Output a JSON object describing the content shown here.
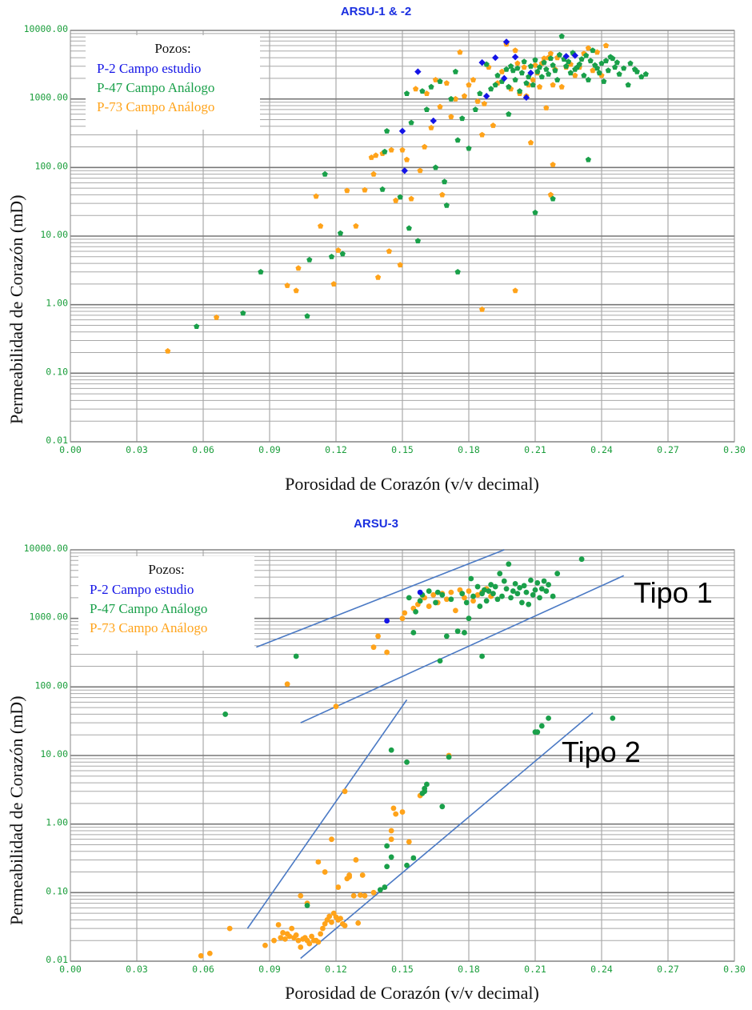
{
  "colors": {
    "P-2": "#1414e6",
    "P-47": "#1aa04a",
    "P-73": "#ffa31a",
    "title": "#1a2fe0",
    "tick": "#1b9e3c",
    "trend": "#4a79c4"
  },
  "chart_data": [
    {
      "type": "scatter",
      "title": "ARSU-1 & -2",
      "xlabel": "Porosidad de Corazón (v/v decimal)",
      "ylabel": "Permeabilidad de Corazón (mD)",
      "xlim": [
        0,
        0.3
      ],
      "ylim": [
        0.01,
        10000
      ],
      "yscale": "log",
      "grid": true,
      "xticks": [
        "0.00",
        "0.03",
        "0.06",
        "0.09",
        "0.12",
        "0.15",
        "0.18",
        "0.21",
        "0.24",
        "0.27",
        "0.30"
      ],
      "yticks": [
        "0.01",
        "0.10",
        "1.00",
        "10.00",
        "100.00",
        "1000.00",
        "10000.00"
      ],
      "legend": {
        "title": "Pozos:",
        "position": "top-left",
        "entries": [
          "P-2 Campo estudio",
          "P-47 Campo Análogo",
          "P-73 Campo Análogo"
        ]
      },
      "series": [
        {
          "name": "P-2 Campo estudio",
          "marker": "diamond",
          "x": [
            0.15,
            0.151,
            0.157,
            0.164,
            0.186,
            0.188,
            0.192,
            0.196,
            0.197,
            0.201,
            0.206,
            0.208,
            0.224,
            0.228
          ],
          "y": [
            340,
            90,
            2500,
            480,
            3400,
            1100,
            4000,
            2000,
            6800,
            4100,
            1050,
            2400,
            4200,
            4300
          ]
        },
        {
          "name": "P-47 Campo Análogo",
          "marker": "pentagon",
          "x": [
            0.057,
            0.078,
            0.086,
            0.107,
            0.108,
            0.115,
            0.118,
            0.122,
            0.123,
            0.141,
            0.142,
            0.143,
            0.149,
            0.152,
            0.153,
            0.154,
            0.157,
            0.159,
            0.161,
            0.163,
            0.165,
            0.167,
            0.169,
            0.17,
            0.172,
            0.174,
            0.175,
            0.177,
            0.18,
            0.183,
            0.185,
            0.188,
            0.19,
            0.192,
            0.193,
            0.195,
            0.197,
            0.198,
            0.199,
            0.2,
            0.201,
            0.202,
            0.203,
            0.204,
            0.205,
            0.206,
            0.207,
            0.208,
            0.209,
            0.21,
            0.211,
            0.212,
            0.213,
            0.214,
            0.215,
            0.216,
            0.217,
            0.218,
            0.219,
            0.22,
            0.221,
            0.222,
            0.223,
            0.224,
            0.225,
            0.226,
            0.227,
            0.228,
            0.229,
            0.23,
            0.231,
            0.232,
            0.233,
            0.234,
            0.235,
            0.236,
            0.237,
            0.238,
            0.239,
            0.24,
            0.241,
            0.242,
            0.243,
            0.244,
            0.245,
            0.246,
            0.247,
            0.248,
            0.25,
            0.252,
            0.253,
            0.255,
            0.256,
            0.258,
            0.26,
            0.218,
            0.21,
            0.234,
            0.198,
            0.175
          ],
          "y": [
            0.48,
            0.75,
            3.0,
            0.68,
            4.5,
            80,
            5.0,
            11,
            5.5,
            48,
            170,
            340,
            37,
            1200,
            13,
            450,
            8.5,
            1300,
            700,
            1500,
            100,
            1800,
            62,
            28,
            1000,
            2500,
            250,
            520,
            190,
            700,
            1200,
            3200,
            1400,
            1600,
            2200,
            1800,
            2700,
            1500,
            3000,
            2600,
            1900,
            2800,
            1300,
            2400,
            3500,
            1700,
            2100,
            3000,
            1600,
            3700,
            2500,
            2900,
            2100,
            3400,
            2700,
            2300,
            3900,
            3100,
            2600,
            1900,
            4400,
            8200,
            3800,
            3000,
            3500,
            2400,
            4700,
            2700,
            2900,
            3200,
            3800,
            2200,
            4300,
            1900,
            3600,
            5100,
            3100,
            2800,
            2400,
            3300,
            1800,
            3600,
            2600,
            4100,
            3900,
            2900,
            3400,
            2300,
            2800,
            1600,
            3300,
            2700,
            2500,
            2100,
            2300,
            35,
            22,
            130,
            600,
            3.0
          ]
        },
        {
          "name": "P-73 Campo Análogo",
          "marker": "pentagon",
          "x": [
            0.044,
            0.066,
            0.098,
            0.102,
            0.103,
            0.111,
            0.113,
            0.119,
            0.121,
            0.129,
            0.133,
            0.136,
            0.137,
            0.139,
            0.141,
            0.144,
            0.145,
            0.147,
            0.149,
            0.15,
            0.152,
            0.154,
            0.156,
            0.158,
            0.16,
            0.161,
            0.163,
            0.165,
            0.167,
            0.168,
            0.17,
            0.172,
            0.174,
            0.176,
            0.178,
            0.18,
            0.182,
            0.184,
            0.186,
            0.187,
            0.189,
            0.191,
            0.193,
            0.195,
            0.197,
            0.199,
            0.201,
            0.202,
            0.203,
            0.205,
            0.206,
            0.207,
            0.208,
            0.209,
            0.21,
            0.211,
            0.212,
            0.213,
            0.214,
            0.215,
            0.216,
            0.217,
            0.218,
            0.219,
            0.22,
            0.222,
            0.224,
            0.226,
            0.228,
            0.23,
            0.232,
            0.234,
            0.236,
            0.238,
            0.24,
            0.242,
            0.186,
            0.201,
            0.217,
            0.218,
            0.125,
            0.138
          ],
          "y": [
            0.21,
            0.65,
            1.9,
            1.6,
            3.4,
            38,
            14,
            2.0,
            6.2,
            14,
            47,
            140,
            80,
            2.5,
            160,
            6.0,
            180,
            33,
            3.8,
            180,
            130,
            35,
            1400,
            90,
            200,
            1200,
            380,
            1900,
            770,
            40,
            1700,
            550,
            1000,
            4800,
            1100,
            1600,
            1900,
            920,
            300,
            850,
            2900,
            410,
            1700,
            2500,
            6300,
            1400,
            5100,
            3300,
            1200,
            2900,
            1100,
            1600,
            230,
            1900,
            3100,
            2400,
            1500,
            3300,
            3900,
            740,
            4000,
            4600,
            1600,
            2700,
            4000,
            1500,
            2900,
            3200,
            2200,
            2900,
            4600,
            5500,
            2600,
            4800,
            2200,
            6000,
            0.85,
            1.6,
            40,
            110,
            46,
            150
          ]
        }
      ]
    },
    {
      "type": "scatter",
      "title": "ARSU-3",
      "xlabel": "Porosidad de Corazón (v/v decimal)",
      "ylabel": "Permeabilidad de Corazón (mD)",
      "xlim": [
        0,
        0.3
      ],
      "ylim": [
        0.01,
        10000
      ],
      "yscale": "log",
      "grid": true,
      "xticks": [
        "0.00",
        "0.03",
        "0.06",
        "0.09",
        "0.12",
        "0.15",
        "0.18",
        "0.21",
        "0.24",
        "0.27",
        "0.30"
      ],
      "yticks": [
        "0.01",
        "0.10",
        "1.00",
        "10.00",
        "100.00",
        "1000.00",
        "10000.00"
      ],
      "legend": {
        "title": "Pozos:",
        "position": "top-left",
        "entries": [
          "P-2 Campo estudio",
          "P-47 Campo Análogo",
          "P-73 Campo Análogo"
        ]
      },
      "annotations": [
        "Tipo 1",
        "Tipo 2"
      ],
      "trendlines": [
        {
          "x": [
            0.084,
            0.196
          ],
          "y": [
            380,
            10000
          ]
        },
        {
          "x": [
            0.104,
            0.25
          ],
          "y": [
            30,
            4200
          ]
        },
        {
          "x": [
            0.08,
            0.152
          ],
          "y": [
            0.03,
            65
          ]
        },
        {
          "x": [
            0.104,
            0.236
          ],
          "y": [
            0.011,
            42
          ]
        }
      ],
      "series": [
        {
          "name": "P-2 Campo estudio",
          "marker": "circle",
          "x": [
            0.143,
            0.158
          ],
          "y": [
            920,
            2400
          ]
        },
        {
          "name": "P-47 Campo Análogo",
          "marker": "circle",
          "x": [
            0.07,
            0.102,
            0.107,
            0.14,
            0.142,
            0.143,
            0.145,
            0.152,
            0.153,
            0.155,
            0.156,
            0.158,
            0.159,
            0.16,
            0.161,
            0.162,
            0.165,
            0.166,
            0.167,
            0.168,
            0.17,
            0.172,
            0.175,
            0.177,
            0.178,
            0.179,
            0.18,
            0.181,
            0.182,
            0.184,
            0.185,
            0.186,
            0.187,
            0.188,
            0.189,
            0.19,
            0.191,
            0.192,
            0.193,
            0.194,
            0.195,
            0.196,
            0.197,
            0.198,
            0.199,
            0.2,
            0.201,
            0.202,
            0.203,
            0.204,
            0.205,
            0.206,
            0.207,
            0.208,
            0.209,
            0.21,
            0.211,
            0.212,
            0.213,
            0.214,
            0.215,
            0.216,
            0.218,
            0.22,
            0.231,
            0.245,
            0.21,
            0.211,
            0.213,
            0.216,
            0.143,
            0.145,
            0.152,
            0.155,
            0.159,
            0.16,
            0.168,
            0.171,
            0.186
          ],
          "y": [
            40,
            280,
            0.065,
            0.11,
            0.12,
            0.48,
            12,
            8.0,
            2000,
            620,
            1250,
            1800,
            2200,
            3.0,
            3.8,
            2500,
            1700,
            2400,
            240,
            2200,
            550,
            1900,
            650,
            2300,
            620,
            1700,
            1000,
            3800,
            2100,
            2900,
            1500,
            280,
            2600,
            1800,
            2500,
            3100,
            2300,
            2900,
            1900,
            4500,
            2100,
            3500,
            2700,
            6200,
            2000,
            2500,
            3200,
            2300,
            2800,
            1700,
            3000,
            2400,
            1600,
            3600,
            2200,
            2600,
            3300,
            2000,
            2700,
            3500,
            2500,
            3100,
            2100,
            4500,
            7300,
            35,
            22,
            22,
            27,
            35,
            0.24,
            0.33,
            0.25,
            0.32,
            2.8,
            3.3,
            1.8,
            9.5,
            2300
          ]
        },
        {
          "name": "P-73 Campo Análogo",
          "marker": "circle",
          "x": [
            0.059,
            0.063,
            0.072,
            0.088,
            0.092,
            0.094,
            0.095,
            0.096,
            0.097,
            0.098,
            0.099,
            0.1,
            0.101,
            0.102,
            0.103,
            0.104,
            0.105,
            0.106,
            0.107,
            0.108,
            0.109,
            0.11,
            0.111,
            0.112,
            0.113,
            0.114,
            0.115,
            0.116,
            0.117,
            0.118,
            0.119,
            0.12,
            0.121,
            0.122,
            0.123,
            0.124,
            0.125,
            0.126,
            0.128,
            0.13,
            0.131,
            0.133,
            0.137,
            0.139,
            0.143,
            0.145,
            0.146,
            0.147,
            0.15,
            0.151,
            0.155,
            0.157,
            0.158,
            0.16,
            0.162,
            0.164,
            0.166,
            0.168,
            0.17,
            0.172,
            0.174,
            0.176,
            0.178,
            0.18,
            0.182,
            0.184,
            0.186,
            0.188,
            0.19,
            0.098,
            0.12,
            0.104,
            0.107,
            0.112,
            0.115,
            0.118,
            0.121,
            0.124,
            0.126,
            0.129,
            0.132,
            0.137,
            0.145,
            0.15,
            0.153,
            0.158,
            0.171
          ],
          "y": [
            0.012,
            0.013,
            0.03,
            0.017,
            0.02,
            0.034,
            0.022,
            0.026,
            0.021,
            0.025,
            0.023,
            0.03,
            0.022,
            0.024,
            0.02,
            0.016,
            0.021,
            0.022,
            0.02,
            0.018,
            0.023,
            0.02,
            0.02,
            0.019,
            0.025,
            0.03,
            0.035,
            0.04,
            0.045,
            0.037,
            0.05,
            0.044,
            0.04,
            0.042,
            0.035,
            0.033,
            0.16,
            0.18,
            0.09,
            0.036,
            0.092,
            0.09,
            380,
            550,
            320,
            0.6,
            1.7,
            1.4,
            1000,
            1200,
            1400,
            1600,
            1800,
            2000,
            1500,
            2200,
            1700,
            2300,
            1900,
            2400,
            1300,
            2600,
            2000,
            2500,
            1800,
            2200,
            2400,
            2700,
            2100,
            110,
            52,
            0.09,
            0.07,
            0.28,
            0.2,
            0.6,
            0.12,
            3.0,
            0.17,
            0.3,
            0.18,
            0.1,
            0.8,
            1.5,
            0.55,
            2.6,
            10
          ]
        }
      ]
    }
  ]
}
